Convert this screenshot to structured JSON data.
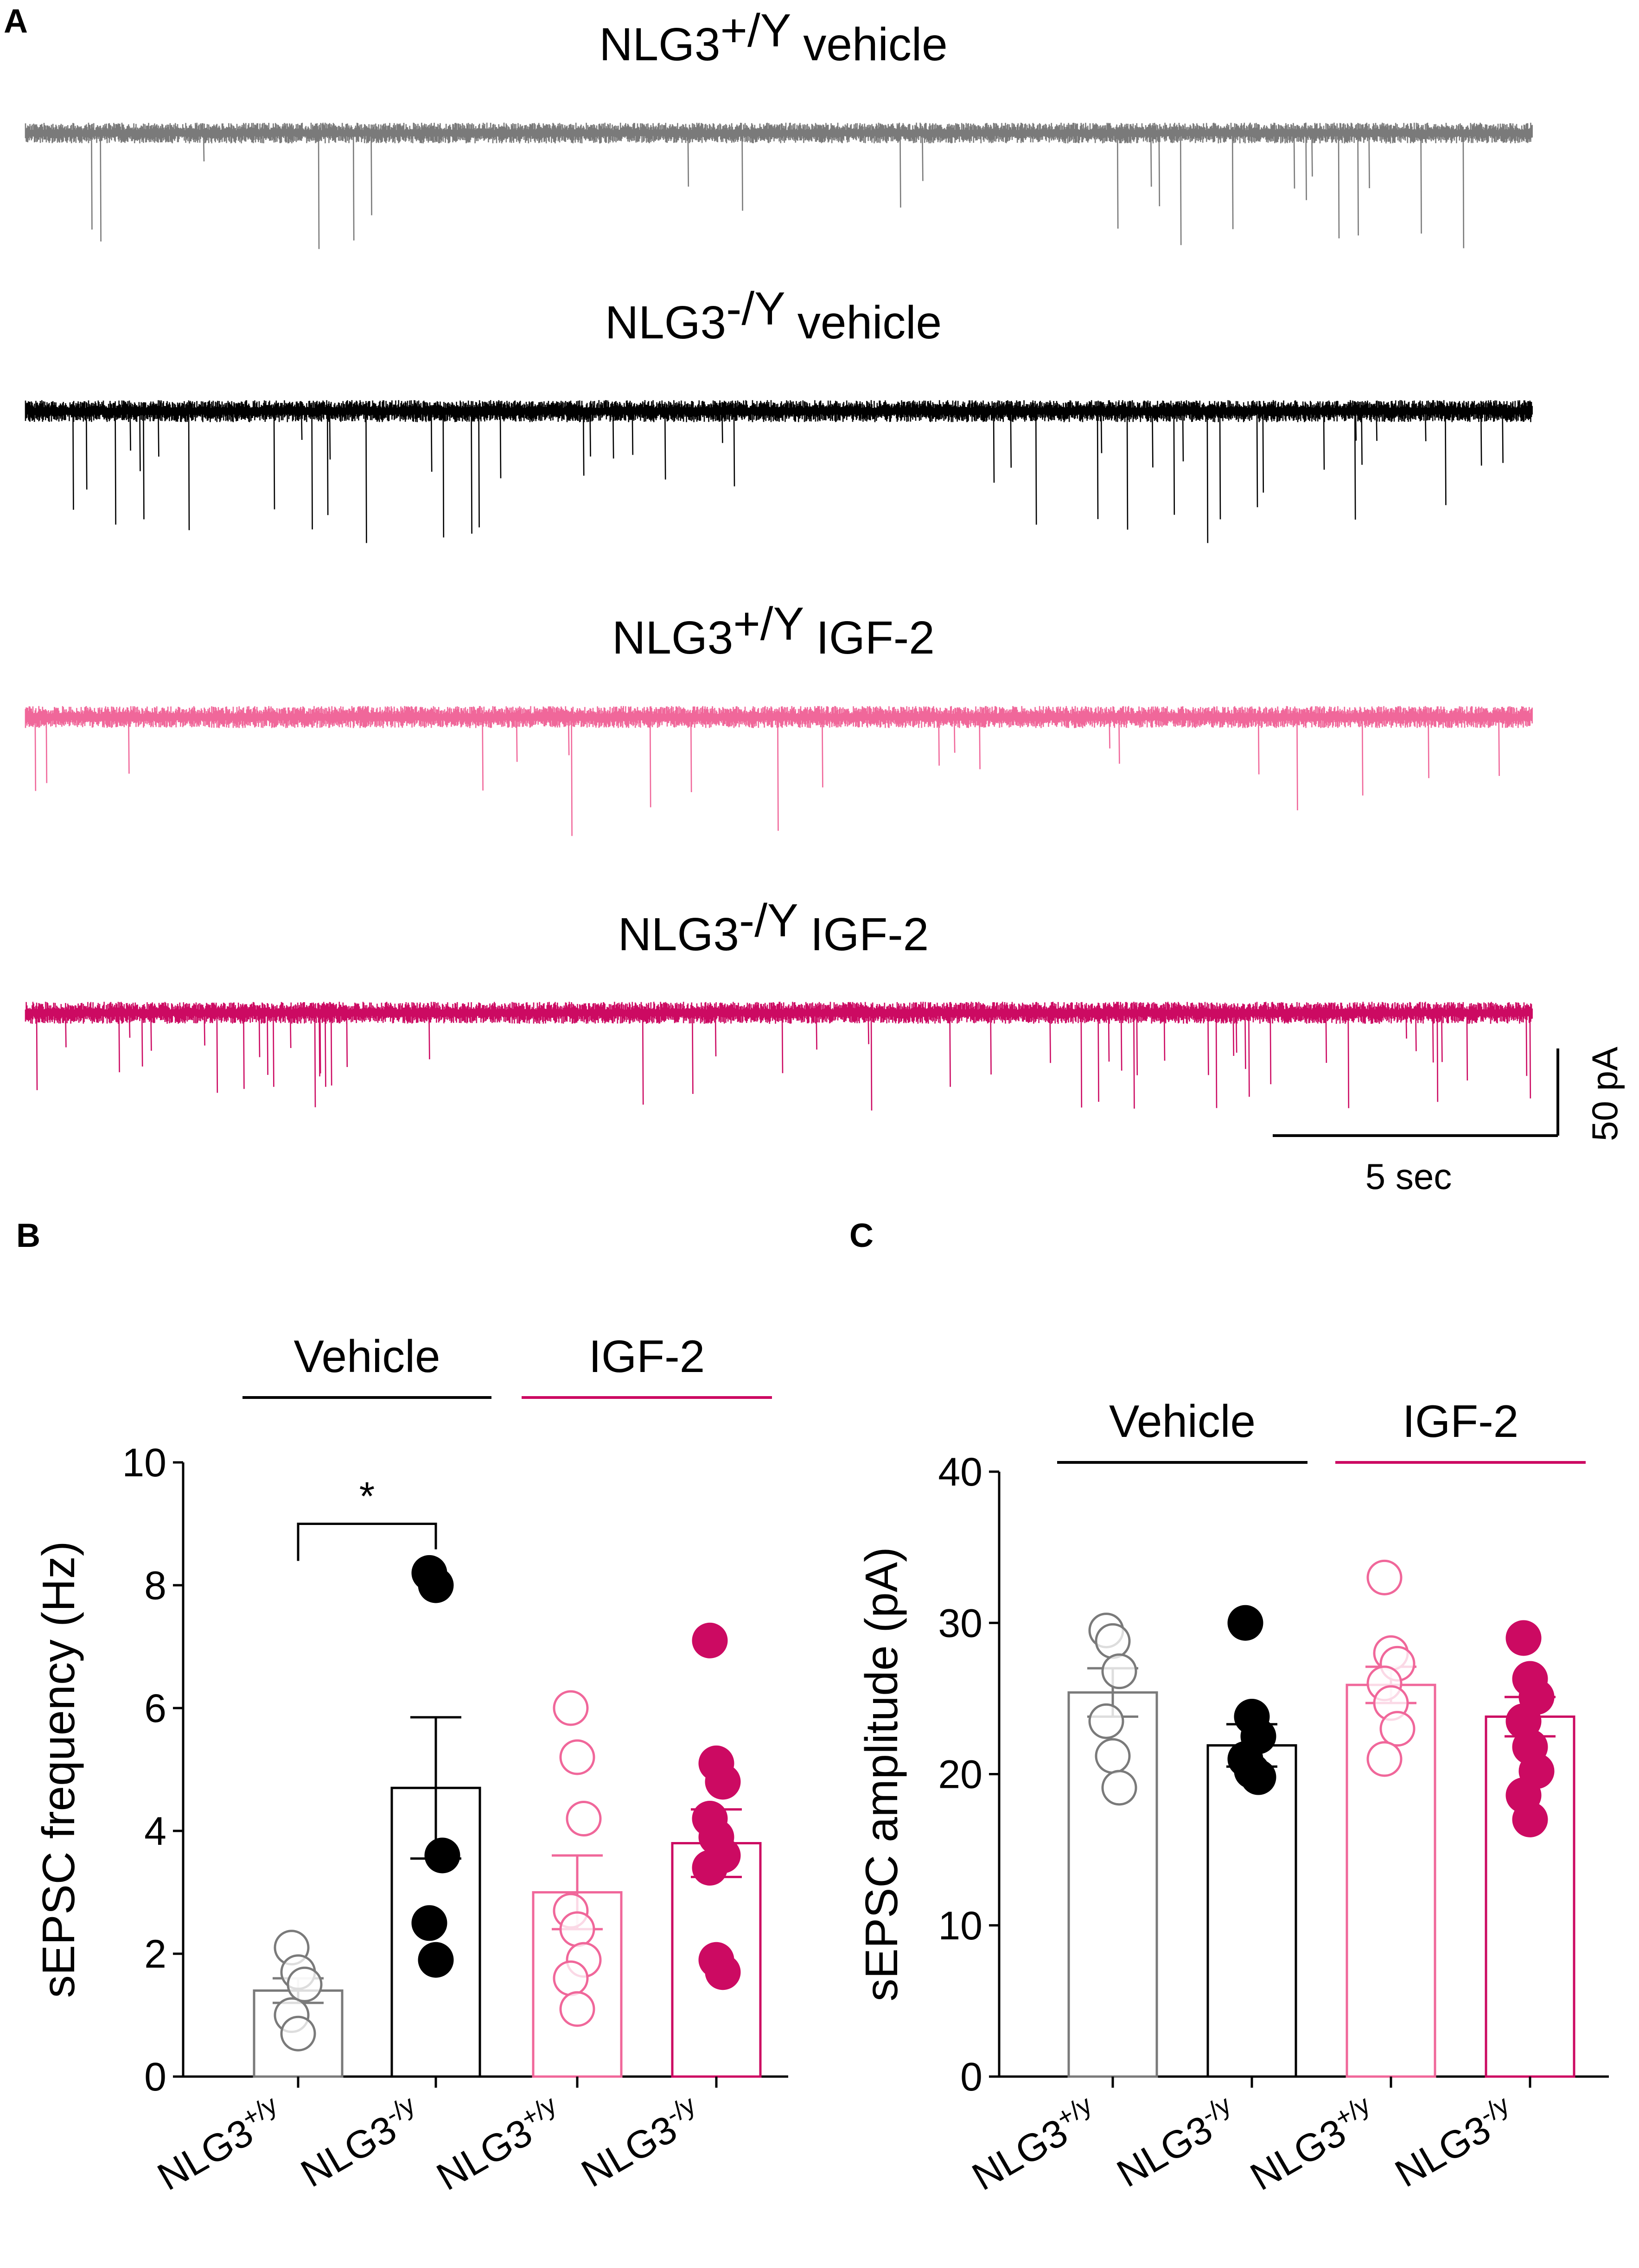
{
  "panels": {
    "a": {
      "letter": "A"
    },
    "b": {
      "letter": "B"
    },
    "c": {
      "letter": "C"
    }
  },
  "traces": [
    {
      "base": "NLG3",
      "sup": "+/Y",
      "suffix": " vehicle",
      "color": "#7a7a7a",
      "seed": 11,
      "noise": 16,
      "rate": 0.01,
      "amp": 55
    },
    {
      "base": "NLG3",
      "sup": "-/Y",
      "suffix": " vehicle",
      "color": "#000000",
      "seed": 23,
      "noise": 17,
      "rate": 0.028,
      "amp": 62
    },
    {
      "base": "NLG3",
      "sup": "+/Y",
      "suffix": " IGF-2",
      "color": "#f0679a",
      "seed": 37,
      "noise": 17,
      "rate": 0.012,
      "amp": 56
    },
    {
      "base": "NLG3",
      "sup": "-/Y",
      "suffix": " IGF-2",
      "color": "#cc0a62",
      "seed": 53,
      "noise": 17,
      "rate": 0.022,
      "amp": 46
    }
  ],
  "scale_bar": {
    "time_label": "5 sec",
    "current_label": "50 pA"
  },
  "chart_data": [
    {
      "type": "bar",
      "panel": "B",
      "ylabel": "sEPSC frequency (Hz)",
      "ylim": [
        0,
        10
      ],
      "yticks": [
        0,
        2,
        4,
        6,
        8,
        10
      ],
      "groups": [
        {
          "label": "Vehicle",
          "color": "#000000"
        },
        {
          "label": "IGF-2",
          "color": "#cc0a62"
        }
      ],
      "categories": [
        {
          "base": "NLG3",
          "sup": "+/y"
        },
        {
          "base": "NLG3",
          "sup": "-/y"
        },
        {
          "base": "NLG3",
          "sup": "+/y"
        },
        {
          "base": "NLG3",
          "sup": "-/y"
        }
      ],
      "bar_colors": [
        "#7a7a7a",
        "#000000",
        "#f0679a",
        "#cc0a62"
      ],
      "filled_points": [
        false,
        true,
        false,
        true
      ],
      "values": [
        1.4,
        4.7,
        3.0,
        3.8
      ],
      "errors": [
        0.2,
        1.15,
        0.6,
        0.55
      ],
      "points": [
        [
          2.1,
          1.7,
          1.5,
          1.0,
          0.7
        ],
        [
          8.2,
          8.0,
          3.6,
          2.5,
          1.9
        ],
        [
          6.0,
          5.2,
          4.2,
          2.7,
          2.4,
          1.9,
          1.6,
          1.1
        ],
        [
          7.1,
          5.1,
          4.8,
          4.2,
          3.9,
          3.6,
          3.4,
          1.9,
          1.7
        ]
      ],
      "significance": {
        "pair": [
          0,
          1
        ],
        "label": "*"
      }
    },
    {
      "type": "bar",
      "panel": "C",
      "ylabel": "sEPSC amplitude (pA)",
      "ylim": [
        0,
        40
      ],
      "yticks": [
        0,
        10,
        20,
        30,
        40
      ],
      "groups": [
        {
          "label": "Vehicle",
          "color": "#000000"
        },
        {
          "label": "IGF-2",
          "color": "#cc0a62"
        }
      ],
      "categories": [
        {
          "base": "NLG3",
          "sup": "+/y"
        },
        {
          "base": "NLG3",
          "sup": "-/y"
        },
        {
          "base": "NLG3",
          "sup": "+/y"
        },
        {
          "base": "NLG3",
          "sup": "-/y"
        }
      ],
      "bar_colors": [
        "#7a7a7a",
        "#000000",
        "#f0679a",
        "#cc0a62"
      ],
      "filled_points": [
        false,
        true,
        false,
        true
      ],
      "values": [
        25.4,
        21.9,
        25.9,
        23.8
      ],
      "errors": [
        1.6,
        1.4,
        1.2,
        1.3
      ],
      "points": [
        [
          29.5,
          28.8,
          26.8,
          23.5,
          21.2,
          19.1
        ],
        [
          30.0,
          23.8,
          22.5,
          21.0,
          20.2,
          19.8
        ],
        [
          33.0,
          28.0,
          27.3,
          26.0,
          24.7,
          23.0,
          21.0
        ],
        [
          29.0,
          26.3,
          25.1,
          23.5,
          21.8,
          20.2,
          18.6,
          17.0
        ]
      ]
    }
  ]
}
